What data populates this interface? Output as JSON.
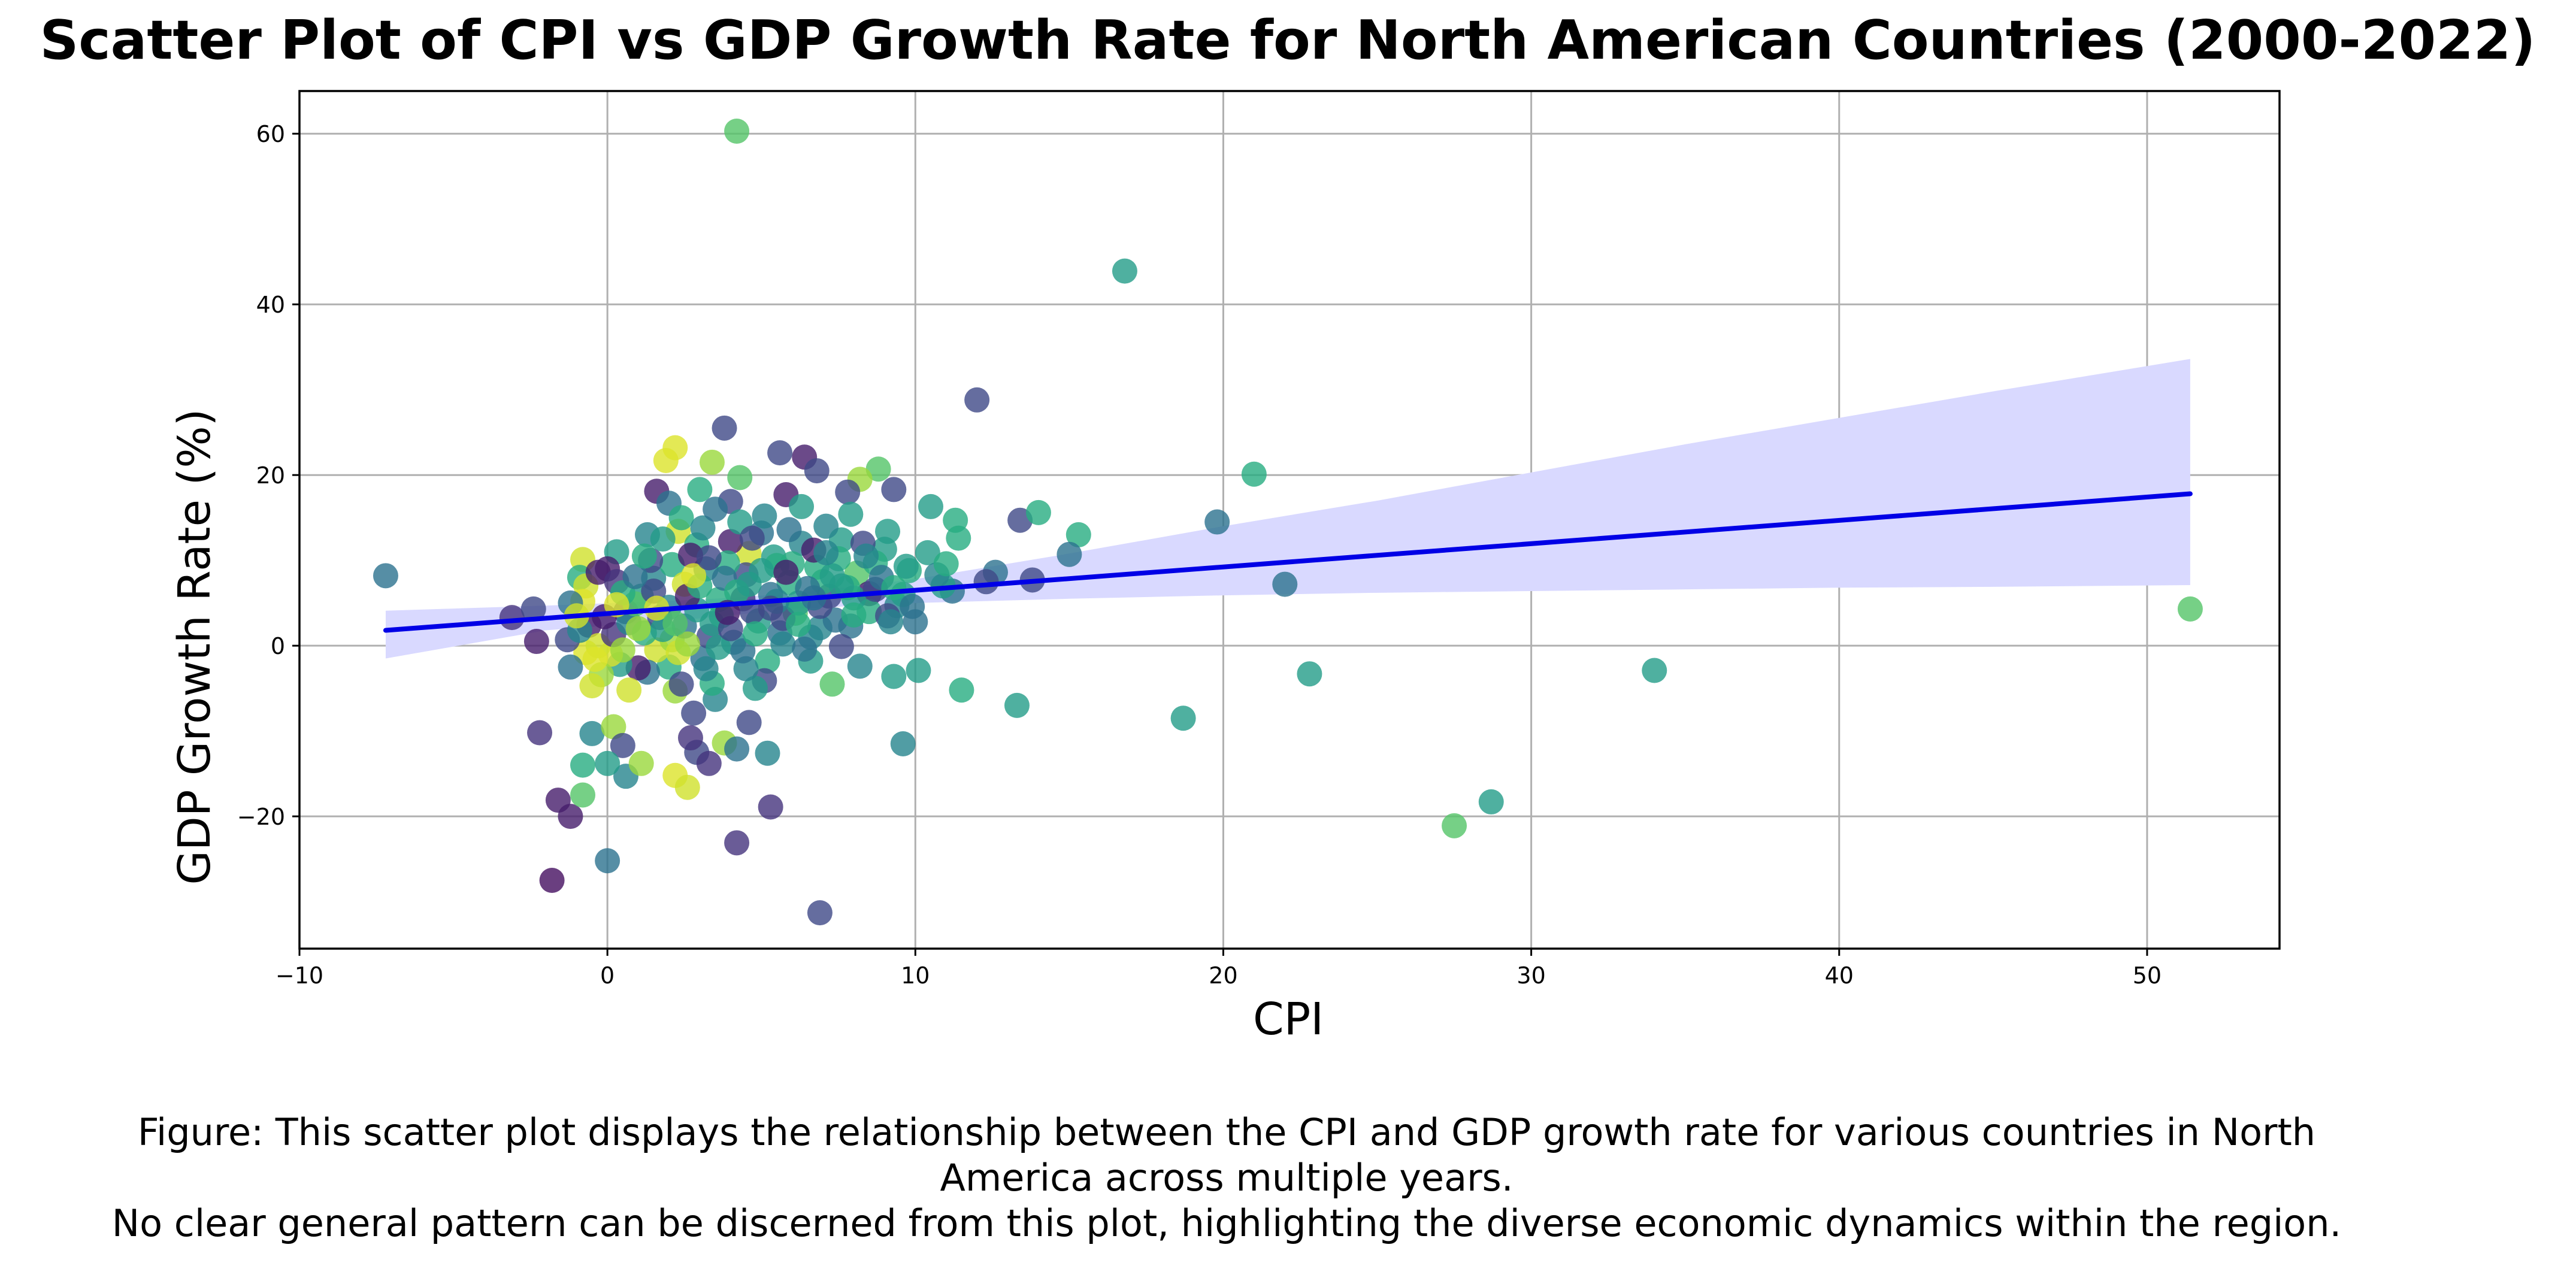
{
  "chart_data": {
    "type": "scatter",
    "title": "Scatter Plot of CPI vs GDP Growth Rate for North American Countries (2000-2022)",
    "xlabel": "CPI",
    "ylabel": "GDP Growth Rate (%)",
    "xlim": [
      -10,
      54.3
    ],
    "ylim": [
      -35.5,
      65
    ],
    "xticks": [
      -10,
      0,
      10,
      20,
      30,
      40,
      50
    ],
    "xtick_labels": [
      "−10",
      "0",
      "10",
      "20",
      "30",
      "40",
      "50"
    ],
    "yticks": [
      -20,
      0,
      20,
      40,
      60
    ],
    "ytick_labels": [
      "−20",
      "0",
      "20",
      "40",
      "60"
    ],
    "grid": true,
    "colormap": "viridis",
    "point_opacity": 0.8,
    "colors": {
      "regression_line": "#0000e6",
      "confidence_band": "#d9d9ff",
      "grid": "#b0b0b0"
    },
    "points": [
      {
        "x": 4.2,
        "y": 60.3,
        "c": 0.73
      },
      {
        "x": 16.8,
        "y": 43.9,
        "c": 0.55
      },
      {
        "x": 12.0,
        "y": 28.8,
        "c": 0.22
      },
      {
        "x": 3.8,
        "y": 25.5,
        "c": 0.22
      },
      {
        "x": 21.0,
        "y": 20.1,
        "c": 0.62
      },
      {
        "x": 19.8,
        "y": 14.5,
        "c": 0.38
      },
      {
        "x": 22.0,
        "y": 7.2,
        "c": 0.38
      },
      {
        "x": 51.4,
        "y": 4.3,
        "c": 0.73
      },
      {
        "x": 22.8,
        "y": -3.3,
        "c": 0.55
      },
      {
        "x": 34.0,
        "y": -2.9,
        "c": 0.55
      },
      {
        "x": 18.7,
        "y": -8.5,
        "c": 0.55
      },
      {
        "x": 27.5,
        "y": -21.1,
        "c": 0.73
      },
      {
        "x": 28.7,
        "y": -18.3,
        "c": 0.55
      },
      {
        "x": -7.2,
        "y": 8.2,
        "c": 0.38
      },
      {
        "x": -3.1,
        "y": 3.3,
        "c": 0.15
      },
      {
        "x": -2.4,
        "y": 4.3,
        "c": 0.22
      },
      {
        "x": -2.3,
        "y": 0.5,
        "c": 0.08
      },
      {
        "x": -2.2,
        "y": -10.2,
        "c": 0.15
      },
      {
        "x": -1.6,
        "y": -18.1,
        "c": 0.08
      },
      {
        "x": -1.8,
        "y": -27.5,
        "c": 0.04
      },
      {
        "x": -1.2,
        "y": -20.0,
        "c": 0.08
      },
      {
        "x": 0.0,
        "y": -25.2,
        "c": 0.38
      },
      {
        "x": -0.8,
        "y": -17.5,
        "c": 0.73
      },
      {
        "x": -0.8,
        "y": -14.0,
        "c": 0.62
      },
      {
        "x": -0.5,
        "y": -10.3,
        "c": 0.45
      },
      {
        "x": 0.2,
        "y": -9.5,
        "c": 0.85
      },
      {
        "x": 0.5,
        "y": -11.7,
        "c": 0.22
      },
      {
        "x": 0.6,
        "y": -15.3,
        "c": 0.45
      },
      {
        "x": 0.0,
        "y": -13.8,
        "c": 0.55
      },
      {
        "x": 1.1,
        "y": -13.8,
        "c": 0.85
      },
      {
        "x": 2.2,
        "y": -15.2,
        "c": 0.95
      },
      {
        "x": 2.6,
        "y": -16.6,
        "c": 0.93
      },
      {
        "x": 2.9,
        "y": -12.5,
        "c": 0.22
      },
      {
        "x": 3.3,
        "y": -13.8,
        "c": 0.15
      },
      {
        "x": 3.8,
        "y": -11.4,
        "c": 0.85
      },
      {
        "x": 4.2,
        "y": -12.1,
        "c": 0.38
      },
      {
        "x": 5.2,
        "y": -12.6,
        "c": 0.45
      },
      {
        "x": 4.2,
        "y": -23.1,
        "c": 0.15
      },
      {
        "x": 5.3,
        "y": -18.9,
        "c": 0.15
      },
      {
        "x": 6.9,
        "y": -31.3,
        "c": 0.22
      },
      {
        "x": 7.3,
        "y": -4.5,
        "c": 0.73
      },
      {
        "x": 9.6,
        "y": -11.5,
        "c": 0.45
      },
      {
        "x": 10.1,
        "y": -2.9,
        "c": 0.55
      },
      {
        "x": 11.5,
        "y": -5.2,
        "c": 0.62
      },
      {
        "x": 13.3,
        "y": -7.0,
        "c": 0.55
      },
      {
        "x": 13.4,
        "y": 14.7,
        "c": 0.22
      },
      {
        "x": 14.0,
        "y": 15.6,
        "c": 0.62
      },
      {
        "x": 15.3,
        "y": 13.0,
        "c": 0.62
      },
      {
        "x": 15.0,
        "y": 10.7,
        "c": 0.38
      },
      {
        "x": 13.8,
        "y": 7.7,
        "c": 0.22
      },
      {
        "x": 12.6,
        "y": 8.6,
        "c": 0.38
      },
      {
        "x": 12.3,
        "y": 7.5,
        "c": 0.22
      },
      {
        "x": 11.3,
        "y": 14.7,
        "c": 0.62
      },
      {
        "x": 10.5,
        "y": 16.3,
        "c": 0.55
      },
      {
        "x": 11.2,
        "y": 6.4,
        "c": 0.38
      },
      {
        "x": 9.3,
        "y": 18.3,
        "c": 0.22
      },
      {
        "x": 8.8,
        "y": 20.7,
        "c": 0.73
      },
      {
        "x": 8.2,
        "y": 19.5,
        "c": 0.85
      },
      {
        "x": 7.8,
        "y": 18.0,
        "c": 0.22
      },
      {
        "x": 6.4,
        "y": 22.1,
        "c": 0.08
      },
      {
        "x": 6.8,
        "y": 20.5,
        "c": 0.22
      },
      {
        "x": 5.6,
        "y": 22.6,
        "c": 0.22
      },
      {
        "x": 5.8,
        "y": 17.7,
        "c": 0.08
      },
      {
        "x": 4.3,
        "y": 19.7,
        "c": 0.73
      },
      {
        "x": 3.4,
        "y": 21.5,
        "c": 0.85
      },
      {
        "x": 3.0,
        "y": 18.3,
        "c": 0.62
      },
      {
        "x": 2.2,
        "y": 23.2,
        "c": 0.95
      },
      {
        "x": 1.9,
        "y": 21.7,
        "c": 0.95
      },
      {
        "x": 1.6,
        "y": 18.1,
        "c": 0.08
      },
      {
        "x": 2.0,
        "y": 16.7,
        "c": 0.38
      },
      {
        "x": 2.3,
        "y": 13.4,
        "c": 0.93
      },
      {
        "x": 1.3,
        "y": 13.0,
        "c": 0.45
      },
      {
        "x": 4.0,
        "y": 16.9,
        "c": 0.22
      },
      {
        "x": 4.6,
        "y": 10.8,
        "c": 0.93
      },
      {
        "x": 0.3,
        "y": 11.0,
        "c": 0.55
      },
      {
        "x": -0.8,
        "y": 10.1,
        "c": 0.93
      },
      {
        "x": -0.9,
        "y": 8.0,
        "c": 0.62
      },
      {
        "x": -0.7,
        "y": 7.0,
        "c": 0.93
      },
      {
        "x": -0.8,
        "y": 5.2,
        "c": 0.95
      },
      {
        "x": -1.2,
        "y": 5.0,
        "c": 0.38
      },
      {
        "x": -0.3,
        "y": 8.6,
        "c": 0.08
      },
      {
        "x": 0.0,
        "y": 9.0,
        "c": 0.08
      },
      {
        "x": 0.3,
        "y": 7.5,
        "c": 0.15
      },
      {
        "x": 0.6,
        "y": 4.0,
        "c": 0.22
      },
      {
        "x": 1.1,
        "y": 5.8,
        "c": 0.55
      },
      {
        "x": 1.5,
        "y": 7.9,
        "c": 0.45
      },
      {
        "x": 2.1,
        "y": 9.5,
        "c": 0.62
      },
      {
        "x": 2.5,
        "y": 7.2,
        "c": 0.93
      },
      {
        "x": 2.9,
        "y": 11.8,
        "c": 0.62
      },
      {
        "x": 3.2,
        "y": 9.0,
        "c": 0.45
      },
      {
        "x": 3.6,
        "y": 5.4,
        "c": 0.62
      },
      {
        "x": 4.0,
        "y": 12.2,
        "c": 0.08
      },
      {
        "x": 4.5,
        "y": 8.3,
        "c": 0.22
      },
      {
        "x": 5.0,
        "y": 13.2,
        "c": 0.38
      },
      {
        "x": 5.4,
        "y": 10.4,
        "c": 0.55
      },
      {
        "x": 5.9,
        "y": 7.4,
        "c": 0.62
      },
      {
        "x": 6.3,
        "y": 12.0,
        "c": 0.45
      },
      {
        "x": 6.8,
        "y": 9.2,
        "c": 0.62
      },
      {
        "x": 7.2,
        "y": 5.8,
        "c": 0.22
      },
      {
        "x": 7.6,
        "y": 12.4,
        "c": 0.55
      },
      {
        "x": 8.1,
        "y": 8.5,
        "c": 0.73
      },
      {
        "x": 8.5,
        "y": 6.1,
        "c": 0.08
      },
      {
        "x": 9.0,
        "y": 11.3,
        "c": 0.55
      },
      {
        "x": 9.4,
        "y": 4.7,
        "c": 0.45
      },
      {
        "x": 9.8,
        "y": 8.8,
        "c": 0.62
      },
      {
        "x": 10.4,
        "y": 10.9,
        "c": 0.55
      },
      {
        "x": 10.9,
        "y": 7.0,
        "c": 0.55
      },
      {
        "x": 7.9,
        "y": 2.3,
        "c": 0.38
      },
      {
        "x": 8.5,
        "y": 4.0,
        "c": 0.62
      },
      {
        "x": 9.1,
        "y": 3.5,
        "c": 0.22
      },
      {
        "x": 10.0,
        "y": 2.8,
        "c": 0.38
      },
      {
        "x": 7.6,
        "y": -0.1,
        "c": 0.22
      },
      {
        "x": 8.2,
        "y": -2.4,
        "c": 0.45
      },
      {
        "x": 6.6,
        "y": -1.8,
        "c": 0.55
      },
      {
        "x": 6.9,
        "y": 2.1,
        "c": 0.45
      },
      {
        "x": 6.1,
        "y": 3.8,
        "c": 0.73
      },
      {
        "x": 5.6,
        "y": 1.5,
        "c": 0.38
      },
      {
        "x": 5.2,
        "y": -1.8,
        "c": 0.62
      },
      {
        "x": 5.1,
        "y": -4.1,
        "c": 0.22
      },
      {
        "x": 4.8,
        "y": -5.0,
        "c": 0.55
      },
      {
        "x": 4.5,
        "y": -2.7,
        "c": 0.45
      },
      {
        "x": 4.6,
        "y": -9.0,
        "c": 0.22
      },
      {
        "x": 3.5,
        "y": -6.3,
        "c": 0.45
      },
      {
        "x": 3.4,
        "y": -4.4,
        "c": 0.62
      },
      {
        "x": 3.1,
        "y": -1.5,
        "c": 0.38
      },
      {
        "x": 2.8,
        "y": -7.9,
        "c": 0.22
      },
      {
        "x": 2.7,
        "y": -10.8,
        "c": 0.15
      },
      {
        "x": 2.2,
        "y": -5.3,
        "c": 0.85
      },
      {
        "x": 2.0,
        "y": -2.5,
        "c": 0.62
      },
      {
        "x": 1.6,
        "y": -0.5,
        "c": 0.93
      },
      {
        "x": 1.3,
        "y": -3.1,
        "c": 0.38
      },
      {
        "x": 1.0,
        "y": -2.6,
        "c": 0.08
      },
      {
        "x": 0.7,
        "y": -5.2,
        "c": 0.93
      },
      {
        "x": 0.4,
        "y": -2.2,
        "c": 0.55
      },
      {
        "x": 0.1,
        "y": -1.0,
        "c": 0.95
      },
      {
        "x": -0.2,
        "y": -3.4,
        "c": 0.85
      },
      {
        "x": -0.5,
        "y": -4.7,
        "c": 0.93
      },
      {
        "x": -0.7,
        "y": -0.8,
        "c": 0.95
      },
      {
        "x": -1.2,
        "y": -2.5,
        "c": 0.38
      },
      {
        "x": -1.3,
        "y": 0.7,
        "c": 0.22
      },
      {
        "x": -0.6,
        "y": 2.4,
        "c": 0.08
      },
      {
        "x": -0.3,
        "y": 0.0,
        "c": 0.93
      },
      {
        "x": 0.2,
        "y": 1.3,
        "c": 0.15
      },
      {
        "x": 0.7,
        "y": 2.7,
        "c": 0.45
      },
      {
        "x": 1.2,
        "y": 1.5,
        "c": 0.62
      },
      {
        "x": 1.7,
        "y": 3.3,
        "c": 0.22
      },
      {
        "x": 2.1,
        "y": 0.7,
        "c": 0.85
      },
      {
        "x": 2.5,
        "y": 2.3,
        "c": 0.38
      },
      {
        "x": 2.9,
        "y": 4.2,
        "c": 0.55
      },
      {
        "x": 3.3,
        "y": 1.1,
        "c": 0.22
      },
      {
        "x": 3.7,
        "y": 3.5,
        "c": 0.62
      },
      {
        "x": 4.1,
        "y": 0.4,
        "c": 0.45
      },
      {
        "x": 4.4,
        "y": 5.5,
        "c": 0.15
      },
      {
        "x": 4.9,
        "y": 2.9,
        "c": 0.55
      },
      {
        "x": 5.3,
        "y": 6.0,
        "c": 0.38
      },
      {
        "x": 5.7,
        "y": 3.2,
        "c": 0.22
      },
      {
        "x": 6.2,
        "y": 5.0,
        "c": 0.55
      },
      {
        "x": 6.6,
        "y": 1.0,
        "c": 0.45
      },
      {
        "x": 7.0,
        "y": 7.5,
        "c": 0.62
      },
      {
        "x": 7.4,
        "y": 3.0,
        "c": 0.38
      },
      {
        "x": 8.0,
        "y": 5.6,
        "c": 0.55
      },
      {
        "x": 8.7,
        "y": 6.6,
        "c": 0.22
      },
      {
        "x": 9.2,
        "y": 2.8,
        "c": 0.45
      },
      {
        "x": 9.6,
        "y": 6.0,
        "c": 0.55
      },
      {
        "x": 9.9,
        "y": 4.6,
        "c": 0.38
      },
      {
        "x": 1.4,
        "y": 10.0,
        "c": 0.22
      },
      {
        "x": 1.8,
        "y": 12.5,
        "c": 0.55
      },
      {
        "x": 2.4,
        "y": 15.0,
        "c": 0.62
      },
      {
        "x": 2.7,
        "y": 10.6,
        "c": 0.08
      },
      {
        "x": 3.1,
        "y": 13.8,
        "c": 0.45
      },
      {
        "x": 3.5,
        "y": 16.0,
        "c": 0.38
      },
      {
        "x": 3.9,
        "y": 9.7,
        "c": 0.62
      },
      {
        "x": 4.3,
        "y": 14.5,
        "c": 0.55
      },
      {
        "x": 4.7,
        "y": 12.6,
        "c": 0.22
      },
      {
        "x": 5.1,
        "y": 15.2,
        "c": 0.45
      },
      {
        "x": 5.5,
        "y": 9.4,
        "c": 0.62
      },
      {
        "x": 5.9,
        "y": 13.6,
        "c": 0.38
      },
      {
        "x": 6.3,
        "y": 16.3,
        "c": 0.55
      },
      {
        "x": 6.7,
        "y": 11.2,
        "c": 0.08
      },
      {
        "x": 7.1,
        "y": 14.0,
        "c": 0.45
      },
      {
        "x": 7.5,
        "y": 10.2,
        "c": 0.62
      },
      {
        "x": 7.9,
        "y": 15.4,
        "c": 0.55
      },
      {
        "x": 8.3,
        "y": 12.0,
        "c": 0.22
      },
      {
        "x": 8.7,
        "y": 9.7,
        "c": 0.62
      },
      {
        "x": 9.1,
        "y": 13.4,
        "c": 0.55
      },
      {
        "x": 0.9,
        "y": 4.9,
        "c": 0.73
      },
      {
        "x": 1.5,
        "y": 6.4,
        "c": 0.22
      },
      {
        "x": 2.0,
        "y": 4.5,
        "c": 0.45
      },
      {
        "x": 2.6,
        "y": 5.8,
        "c": 0.08
      },
      {
        "x": 3.0,
        "y": 7.0,
        "c": 0.62
      },
      {
        "x": 3.4,
        "y": 2.6,
        "c": 0.55
      },
      {
        "x": 3.8,
        "y": 7.9,
        "c": 0.38
      },
      {
        "x": 4.2,
        "y": 6.3,
        "c": 0.62
      },
      {
        "x": 4.7,
        "y": 4.0,
        "c": 0.22
      },
      {
        "x": 5.0,
        "y": 8.8,
        "c": 0.55
      },
      {
        "x": 5.5,
        "y": 5.2,
        "c": 0.45
      },
      {
        "x": 6.0,
        "y": 9.6,
        "c": 0.62
      },
      {
        "x": 6.5,
        "y": 6.7,
        "c": 0.38
      },
      {
        "x": 0.5,
        "y": 6.2,
        "c": 0.62
      },
      {
        "x": -0.1,
        "y": 3.4,
        "c": 0.08
      },
      {
        "x": -0.9,
        "y": 1.8,
        "c": 0.45
      },
      {
        "x": -0.4,
        "y": -1.6,
        "c": 0.95
      },
      {
        "x": 0.5,
        "y": -0.5,
        "c": 0.85
      },
      {
        "x": 1.8,
        "y": 1.9,
        "c": 0.55
      },
      {
        "x": 2.3,
        "y": -0.8,
        "c": 0.93
      },
      {
        "x": 2.6,
        "y": 0.2,
        "c": 0.85
      },
      {
        "x": 3.2,
        "y": -2.7,
        "c": 0.45
      },
      {
        "x": 3.6,
        "y": -0.2,
        "c": 0.55
      },
      {
        "x": 4.0,
        "y": 2.0,
        "c": 0.22
      },
      {
        "x": 4.4,
        "y": -0.6,
        "c": 0.38
      },
      {
        "x": 4.8,
        "y": 1.4,
        "c": 0.62
      },
      {
        "x": 5.7,
        "y": 0.2,
        "c": 0.45
      },
      {
        "x": 6.4,
        "y": -0.4,
        "c": 0.38
      },
      {
        "x": 6.9,
        "y": 4.6,
        "c": 0.22
      },
      {
        "x": 7.3,
        "y": 8.2,
        "c": 0.55
      },
      {
        "x": 7.8,
        "y": 6.8,
        "c": 0.62
      },
      {
        "x": 8.4,
        "y": 10.5,
        "c": 0.45
      },
      {
        "x": 8.9,
        "y": 8.0,
        "c": 0.38
      },
      {
        "x": 9.3,
        "y": 6.8,
        "c": 0.62
      },
      {
        "x": 9.7,
        "y": 9.3,
        "c": 0.55
      },
      {
        "x": 10.7,
        "y": 8.3,
        "c": 0.45
      },
      {
        "x": 11.0,
        "y": 9.6,
        "c": 0.62
      },
      {
        "x": 11.4,
        "y": 12.6,
        "c": 0.62
      },
      {
        "x": 9.3,
        "y": -3.6,
        "c": 0.55
      },
      {
        "x": 2.4,
        "y": -4.5,
        "c": 0.22
      },
      {
        "x": 1.6,
        "y": 4.4,
        "c": 0.95
      },
      {
        "x": 0.9,
        "y": 8.1,
        "c": 0.38
      },
      {
        "x": 1.2,
        "y": 10.5,
        "c": 0.62
      },
      {
        "x": 2.8,
        "y": 8.2,
        "c": 0.95
      },
      {
        "x": 3.3,
        "y": 10.3,
        "c": 0.22
      },
      {
        "x": 3.9,
        "y": 3.9,
        "c": 0.08
      },
      {
        "x": 4.6,
        "y": 7.2,
        "c": 0.55
      },
      {
        "x": 5.3,
        "y": 4.4,
        "c": 0.22
      },
      {
        "x": 5.8,
        "y": 8.6,
        "c": 0.08
      },
      {
        "x": 6.2,
        "y": 2.5,
        "c": 0.62
      },
      {
        "x": 6.7,
        "y": 5.6,
        "c": 0.38
      },
      {
        "x": 7.1,
        "y": 10.9,
        "c": 0.45
      },
      {
        "x": 7.6,
        "y": 7.0,
        "c": 0.55
      },
      {
        "x": 8.0,
        "y": 3.6,
        "c": 0.62
      },
      {
        "x": 1.0,
        "y": 2.0,
        "c": 0.85
      },
      {
        "x": 0.3,
        "y": 4.8,
        "c": 0.95
      },
      {
        "x": -1.0,
        "y": 3.5,
        "c": 0.93
      },
      {
        "x": 2.2,
        "y": 2.6,
        "c": 0.73
      }
    ],
    "regression": {
      "x": [
        -7.2,
        51.4
      ],
      "y": [
        1.8,
        17.8
      ]
    },
    "confidence_band": {
      "x": [
        -7.2,
        -2,
        3,
        6,
        10,
        15,
        20,
        25,
        30,
        35,
        40,
        45,
        51.4
      ],
      "lower": [
        -1.5,
        1.8,
        3.2,
        4.3,
        5.0,
        5.5,
        5.9,
        6.2,
        6.4,
        6.6,
        6.8,
        6.9,
        7.1
      ],
      "upper": [
        4.1,
        4.7,
        5.4,
        6.1,
        7.8,
        10.8,
        14.0,
        17.0,
        20.3,
        23.6,
        26.7,
        29.8,
        33.6
      ]
    }
  },
  "caption": {
    "line1": "Figure: This scatter plot displays the relationship between the CPI and GDP growth rate for various countries in North",
    "line2": "America across multiple years.",
    "line3": "No clear general pattern can be discerned from this plot, highlighting the diverse economic dynamics within the region."
  }
}
